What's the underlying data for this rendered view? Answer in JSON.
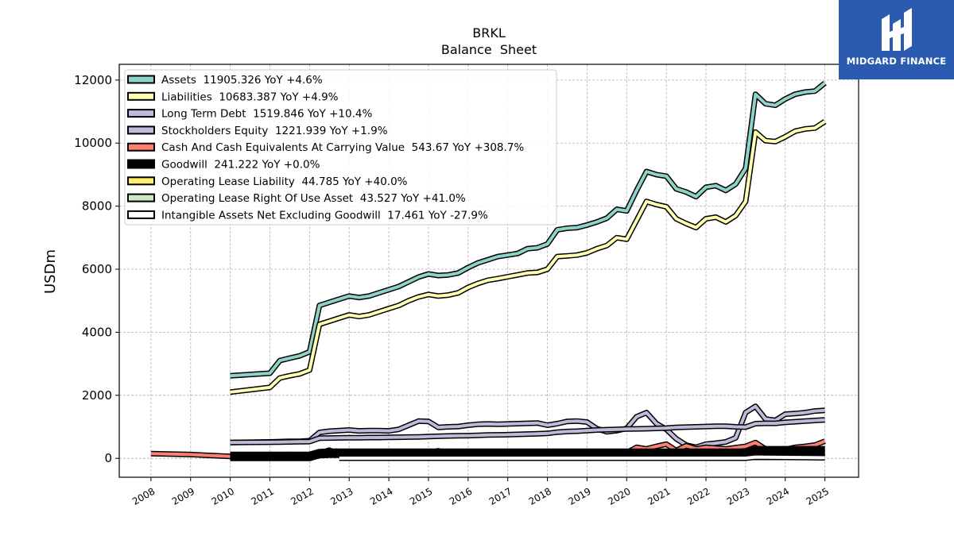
{
  "logo": {
    "text": "MIDGARD FINANCE"
  },
  "chart_data": {
    "type": "line",
    "title": "BRKL",
    "subtitle": "Balance  Sheet",
    "ylabel": "USDm",
    "xlabel": "",
    "xlim": [
      2007.2,
      2025.85
    ],
    "ylim": [
      -600,
      12500
    ],
    "x_ticks": [
      2008,
      2009,
      2010,
      2011,
      2012,
      2013,
      2014,
      2015,
      2016,
      2017,
      2018,
      2019,
      2020,
      2021,
      2022,
      2023,
      2024,
      2025
    ],
    "y_ticks": [
      0,
      2000,
      4000,
      6000,
      8000,
      10000,
      12000
    ],
    "grid": true,
    "legend_position": "top-left",
    "series": [
      {
        "name": "Assets  11905.326 YoY +4.6%",
        "color": "#8dd3c7",
        "x": [
          2010.0,
          2011.0,
          2011.25,
          2011.5,
          2011.75,
          2012.0,
          2012.25,
          2012.5,
          2012.75,
          2013.0,
          2013.25,
          2013.5,
          2013.75,
          2014.0,
          2014.25,
          2014.5,
          2014.75,
          2015.0,
          2015.25,
          2015.5,
          2015.75,
          2016.0,
          2016.25,
          2016.5,
          2016.75,
          2017.0,
          2017.25,
          2017.5,
          2017.75,
          2018.0,
          2018.25,
          2018.5,
          2018.75,
          2019.0,
          2019.25,
          2019.5,
          2019.75,
          2020.0,
          2020.25,
          2020.5,
          2020.75,
          2021.0,
          2021.25,
          2021.5,
          2021.75,
          2022.0,
          2022.25,
          2022.5,
          2022.75,
          2023.0,
          2023.25,
          2023.5,
          2023.75,
          2024.0,
          2024.25,
          2024.5,
          2024.75,
          2025.0
        ],
        "values": [
          2620,
          2700,
          3100,
          3180,
          3250,
          3380,
          4850,
          4950,
          5050,
          5150,
          5100,
          5150,
          5250,
          5350,
          5450,
          5600,
          5750,
          5850,
          5800,
          5820,
          5880,
          6050,
          6200,
          6300,
          6400,
          6450,
          6500,
          6650,
          6680,
          6800,
          7250,
          7300,
          7320,
          7400,
          7500,
          7620,
          7900,
          7850,
          8500,
          9100,
          9000,
          8950,
          8550,
          8450,
          8300,
          8600,
          8650,
          8500,
          8700,
          9200,
          11550,
          11250,
          11200,
          11400,
          11550,
          11620,
          11650,
          11905
        ]
      },
      {
        "name": "Liabilities  10683.387 YoY +4.9%",
        "color": "#ffffb3",
        "x": [
          2010.0,
          2011.0,
          2011.25,
          2011.5,
          2011.75,
          2012.0,
          2012.25,
          2012.5,
          2012.75,
          2013.0,
          2013.25,
          2013.5,
          2013.75,
          2014.0,
          2014.25,
          2014.5,
          2014.75,
          2015.0,
          2015.25,
          2015.5,
          2015.75,
          2016.0,
          2016.25,
          2016.5,
          2016.75,
          2017.0,
          2017.25,
          2017.5,
          2017.75,
          2018.0,
          2018.25,
          2018.5,
          2018.75,
          2019.0,
          2019.25,
          2019.5,
          2019.75,
          2020.0,
          2020.25,
          2020.5,
          2020.75,
          2021.0,
          2021.25,
          2021.5,
          2021.75,
          2022.0,
          2022.25,
          2022.5,
          2022.75,
          2023.0,
          2023.25,
          2023.5,
          2023.75,
          2024.0,
          2024.25,
          2024.5,
          2024.75,
          2025.0
        ],
        "values": [
          2100,
          2250,
          2550,
          2620,
          2680,
          2800,
          4250,
          4350,
          4450,
          4550,
          4500,
          4550,
          4650,
          4750,
          4850,
          5000,
          5120,
          5200,
          5150,
          5180,
          5250,
          5420,
          5550,
          5650,
          5700,
          5760,
          5820,
          5880,
          5900,
          6000,
          6400,
          6420,
          6450,
          6520,
          6650,
          6750,
          7000,
          6950,
          7550,
          8150,
          8050,
          7980,
          7600,
          7450,
          7320,
          7600,
          7650,
          7500,
          7700,
          8150,
          10350,
          10080,
          10050,
          10200,
          10380,
          10450,
          10480,
          10683
        ]
      },
      {
        "name": "Long Term Debt  1519.846 YoY +10.4%",
        "color": "#bebada",
        "x": [
          2010.0,
          2011.0,
          2011.25,
          2011.5,
          2011.75,
          2012.0,
          2012.25,
          2012.5,
          2012.75,
          2013.0,
          2013.25,
          2013.5,
          2013.75,
          2014.0,
          2014.25,
          2014.5,
          2014.75,
          2015.0,
          2015.25,
          2015.5,
          2015.75,
          2016.0,
          2016.25,
          2016.5,
          2016.75,
          2017.0,
          2017.25,
          2017.5,
          2017.75,
          2018.0,
          2018.25,
          2018.5,
          2018.75,
          2019.0,
          2019.25,
          2019.5,
          2019.75,
          2020.0,
          2020.25,
          2020.5,
          2020.75,
          2021.0,
          2021.25,
          2021.5,
          2021.75,
          2022.0,
          2022.25,
          2022.5,
          2022.75,
          2023.0,
          2023.25,
          2023.5,
          2023.75,
          2024.0,
          2024.25,
          2024.5,
          2024.75,
          2025.0
        ],
        "values": [
          500,
          520,
          530,
          540,
          540,
          560,
          820,
          860,
          880,
          900,
          870,
          880,
          880,
          870,
          920,
          1050,
          1180,
          1170,
          980,
          1000,
          1010,
          1050,
          1080,
          1090,
          1080,
          1090,
          1100,
          1110,
          1120,
          1050,
          1100,
          1170,
          1180,
          1150,
          940,
          840,
          880,
          950,
          1320,
          1450,
          1100,
          920,
          620,
          420,
          350,
          450,
          480,
          520,
          650,
          1450,
          1650,
          1250,
          1200,
          1400,
          1420,
          1450,
          1500,
          1520
        ]
      },
      {
        "name": "Stockholders Equity  1221.939 YoY +1.9%",
        "color": "#bebada",
        "x": [
          2010.0,
          2011.0,
          2011.25,
          2011.5,
          2011.75,
          2012.0,
          2012.25,
          2012.5,
          2012.75,
          2013.0,
          2013.25,
          2013.5,
          2013.75,
          2014.0,
          2014.25,
          2014.5,
          2014.75,
          2015.0,
          2015.25,
          2015.5,
          2015.75,
          2016.0,
          2016.25,
          2016.5,
          2016.75,
          2017.0,
          2017.25,
          2017.5,
          2017.75,
          2018.0,
          2018.25,
          2018.5,
          2018.75,
          2019.0,
          2019.25,
          2019.5,
          2019.75,
          2020.0,
          2020.25,
          2020.5,
          2020.75,
          2021.0,
          2021.25,
          2021.5,
          2021.75,
          2022.0,
          2022.25,
          2022.5,
          2022.75,
          2023.0,
          2023.25,
          2023.5,
          2023.75,
          2024.0,
          2024.25,
          2024.5,
          2024.75,
          2025.0
        ],
        "values": [
          500,
          510,
          515,
          520,
          525,
          530,
          640,
          645,
          650,
          655,
          655,
          660,
          660,
          665,
          670,
          675,
          680,
          690,
          700,
          710,
          715,
          720,
          730,
          740,
          745,
          750,
          760,
          770,
          780,
          790,
          830,
          850,
          860,
          880,
          900,
          910,
          920,
          930,
          935,
          940,
          950,
          960,
          980,
          990,
          1000,
          1010,
          1020,
          1020,
          1000,
          990,
          1100,
          1110,
          1110,
          1140,
          1160,
          1180,
          1200,
          1222
        ]
      },
      {
        "name": "Cash And Cash Equivalents At Carrying Value  543.67 YoY +308.7%",
        "color": "#fb8072",
        "x": [
          2008.0,
          2009.0,
          2010.0,
          2010.5,
          2011.0,
          2011.5,
          2012.0,
          2012.25,
          2012.5,
          2012.75,
          2013.0,
          2013.5,
          2014.0,
          2014.5,
          2015.0,
          2015.25,
          2015.5,
          2016.0,
          2016.5,
          2017.0,
          2017.5,
          2018.0,
          2018.5,
          2019.0,
          2019.5,
          2019.75,
          2020.0,
          2020.25,
          2020.5,
          2020.75,
          2021.0,
          2021.25,
          2021.5,
          2021.75,
          2022.0,
          2022.5,
          2023.0,
          2023.25,
          2023.5,
          2023.75,
          2024.0,
          2024.25,
          2024.5,
          2024.75,
          2025.0
        ],
        "values": [
          150,
          120,
          60,
          90,
          70,
          120,
          100,
          160,
          260,
          120,
          160,
          130,
          140,
          150,
          160,
          240,
          130,
          140,
          150,
          130,
          150,
          160,
          150,
          170,
          160,
          200,
          180,
          350,
          300,
          380,
          450,
          250,
          400,
          300,
          350,
          300,
          380,
          500,
          300,
          250,
          280,
          350,
          380,
          420,
          544
        ]
      },
      {
        "name": "Goodwill  241.222 YoY +0.0%",
        "color": "#000000",
        "x": [
          2010.0,
          2012.0,
          2012.25,
          2012.5,
          2013.0,
          2014.0,
          2015.0,
          2016.0,
          2017.0,
          2018.0,
          2019.0,
          2020.0,
          2021.0,
          2022.0,
          2023.0,
          2023.25,
          2024.0,
          2025.0
        ],
        "values": [
          60,
          60,
          150,
          160,
          160,
          160,
          160,
          160,
          160,
          160,
          160,
          160,
          160,
          160,
          160,
          241,
          241,
          241
        ]
      },
      {
        "name": "Operating Lease Liability  44.785 YoY +40.0%",
        "color": "#ffed6f",
        "x": [
          2019.0,
          2020.0,
          2021.0,
          2022.0,
          2023.0,
          2024.0,
          2025.0
        ],
        "values": [
          40,
          38,
          36,
          35,
          33,
          32,
          44.785
        ]
      },
      {
        "name": "Operating Lease Right Of Use Asset  43.527 YoY +41.0%",
        "color": "#ccebc5",
        "x": [
          2019.0,
          2020.0,
          2021.0,
          2022.0,
          2023.0,
          2024.0,
          2025.0
        ],
        "values": [
          38,
          36,
          34,
          33,
          31,
          31,
          43.527
        ]
      },
      {
        "name": "Intangible Assets Net Excluding Goodwill  17.461 YoY -27.9%",
        "color": "#ffffff",
        "x": [
          2012.75,
          2013.0,
          2014.0,
          2015.0,
          2016.0,
          2017.0,
          2018.0,
          2019.0,
          2020.0,
          2021.0,
          2022.0,
          2023.0,
          2023.25,
          2024.0,
          2025.0
        ],
        "values": [
          5,
          5,
          5,
          5,
          5,
          5,
          5,
          5,
          5,
          5,
          5,
          5,
          40,
          30,
          17.461
        ]
      }
    ]
  }
}
